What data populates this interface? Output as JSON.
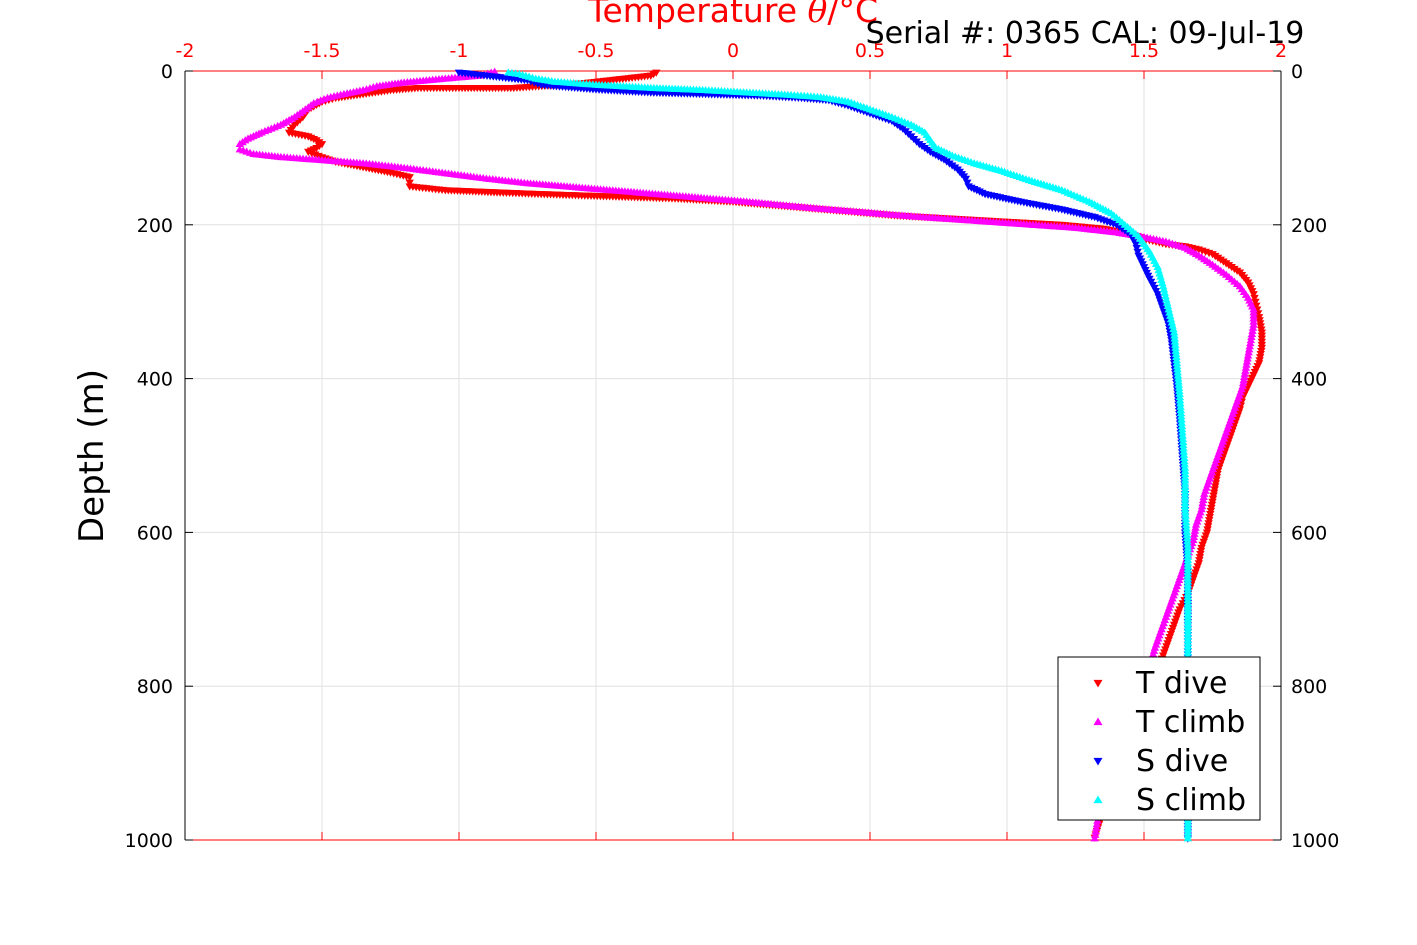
{
  "chart_data": {
    "type": "scatter",
    "title_prefix": "Temperature ",
    "title_symbol": "θ",
    "title_suffix": "/°C",
    "annotation": "Serial #: 0365  CAL: 09-Jul-19",
    "xlabel": "Temperature θ/°C",
    "ylabel": "Depth (m)",
    "xlim": [
      -2,
      2
    ],
    "ylim": [
      0,
      1000
    ],
    "y_reversed": true,
    "x_axis_position": "top",
    "x_ticks": [
      -2,
      -1.5,
      -1,
      -0.5,
      0,
      0.5,
      1,
      1.5,
      2
    ],
    "x_tick_labels": [
      "-2",
      "-1.5",
      "-1",
      "-0.5",
      "0",
      "0.5",
      "1",
      "1.5",
      "2"
    ],
    "y_ticks": [
      0,
      200,
      400,
      600,
      800,
      1000
    ],
    "y_tick_labels": [
      "0",
      "200",
      "400",
      "600",
      "800",
      "1000"
    ],
    "grid": true,
    "legend_position": "bottom-right",
    "colors": {
      "axis_x": "#ff0000",
      "axis_y": "#000000",
      "grid": "#e0e0e0",
      "title": "#ff0000"
    },
    "series": [
      {
        "name": "T dive",
        "color": "#ff0000",
        "marker": "triangle-down",
        "points": [
          [
            -0.28,
            2
          ],
          [
            -0.3,
            6
          ],
          [
            -0.55,
            16
          ],
          [
            -0.8,
            22
          ],
          [
            -1.0,
            22
          ],
          [
            -1.15,
            22
          ],
          [
            -1.25,
            25
          ],
          [
            -1.35,
            30
          ],
          [
            -1.45,
            35
          ],
          [
            -1.5,
            40
          ],
          [
            -1.55,
            50
          ],
          [
            -1.57,
            60
          ],
          [
            -1.6,
            70
          ],
          [
            -1.62,
            80
          ],
          [
            -1.55,
            85
          ],
          [
            -1.52,
            90
          ],
          [
            -1.5,
            95
          ],
          [
            -1.52,
            100
          ],
          [
            -1.55,
            105
          ],
          [
            -1.5,
            112
          ],
          [
            -1.45,
            118
          ],
          [
            -1.35,
            125
          ],
          [
            -1.25,
            132
          ],
          [
            -1.18,
            138
          ],
          [
            -1.18,
            145
          ],
          [
            -1.18,
            150
          ],
          [
            -1.05,
            155
          ],
          [
            -0.85,
            158
          ],
          [
            -0.7,
            160
          ],
          [
            -0.45,
            163
          ],
          [
            -0.2,
            166
          ],
          [
            0.0,
            170
          ],
          [
            0.2,
            176
          ],
          [
            0.4,
            182
          ],
          [
            0.6,
            188
          ],
          [
            0.8,
            192
          ],
          [
            1.0,
            196
          ],
          [
            1.2,
            200
          ],
          [
            1.35,
            205
          ],
          [
            1.45,
            212
          ],
          [
            1.52,
            220
          ],
          [
            1.58,
            225
          ],
          [
            1.65,
            228
          ],
          [
            1.7,
            232
          ],
          [
            1.75,
            238
          ],
          [
            1.8,
            250
          ],
          [
            1.85,
            262
          ],
          [
            1.88,
            275
          ],
          [
            1.9,
            290
          ],
          [
            1.91,
            305
          ],
          [
            1.92,
            320
          ],
          [
            1.93,
            340
          ],
          [
            1.93,
            360
          ],
          [
            1.92,
            380
          ],
          [
            1.9,
            395
          ],
          [
            1.88,
            410
          ],
          [
            1.86,
            425
          ],
          [
            1.85,
            440
          ],
          [
            1.83,
            460
          ],
          [
            1.81,
            480
          ],
          [
            1.79,
            500
          ],
          [
            1.77,
            520
          ],
          [
            1.76,
            540
          ],
          [
            1.75,
            560
          ],
          [
            1.74,
            580
          ],
          [
            1.73,
            600
          ],
          [
            1.71,
            620
          ],
          [
            1.7,
            640
          ],
          [
            1.68,
            660
          ],
          [
            1.66,
            680
          ],
          [
            1.63,
            700
          ],
          [
            1.61,
            720
          ],
          [
            1.59,
            740
          ],
          [
            1.57,
            760
          ],
          [
            1.55,
            780
          ],
          [
            1.52,
            800
          ],
          [
            1.49,
            830
          ],
          [
            1.45,
            860
          ],
          [
            1.42,
            890
          ],
          [
            1.39,
            920
          ],
          [
            1.36,
            950
          ],
          [
            1.34,
            975
          ],
          [
            1.32,
            997
          ]
        ]
      },
      {
        "name": "T climb",
        "color": "#ff00ff",
        "marker": "triangle-up",
        "points": [
          [
            -0.87,
            1
          ],
          [
            -0.92,
            6
          ],
          [
            -1.05,
            10
          ],
          [
            -1.2,
            15
          ],
          [
            -1.3,
            20
          ],
          [
            -1.35,
            25
          ],
          [
            -1.42,
            30
          ],
          [
            -1.48,
            35
          ],
          [
            -1.53,
            42
          ],
          [
            -1.56,
            50
          ],
          [
            -1.6,
            60
          ],
          [
            -1.65,
            70
          ],
          [
            -1.72,
            80
          ],
          [
            -1.77,
            88
          ],
          [
            -1.8,
            95
          ],
          [
            -1.8,
            102
          ],
          [
            -1.75,
            108
          ],
          [
            -1.65,
            112
          ],
          [
            -1.5,
            116
          ],
          [
            -1.35,
            120
          ],
          [
            -1.2,
            126
          ],
          [
            -1.05,
            133
          ],
          [
            -0.9,
            140
          ],
          [
            -0.75,
            146
          ],
          [
            -0.55,
            152
          ],
          [
            -0.35,
            158
          ],
          [
            -0.15,
            164
          ],
          [
            0.05,
            170
          ],
          [
            0.25,
            177
          ],
          [
            0.45,
            183
          ],
          [
            0.65,
            189
          ],
          [
            0.85,
            194
          ],
          [
            1.05,
            199
          ],
          [
            1.25,
            204
          ],
          [
            1.4,
            210
          ],
          [
            1.5,
            216
          ],
          [
            1.58,
            222
          ],
          [
            1.65,
            230
          ],
          [
            1.7,
            240
          ],
          [
            1.75,
            252
          ],
          [
            1.8,
            265
          ],
          [
            1.85,
            280
          ],
          [
            1.88,
            295
          ],
          [
            1.9,
            310
          ],
          [
            1.9,
            330
          ],
          [
            1.89,
            350
          ],
          [
            1.88,
            370
          ],
          [
            1.87,
            390
          ],
          [
            1.86,
            410
          ],
          [
            1.84,
            430
          ],
          [
            1.82,
            450
          ],
          [
            1.8,
            470
          ],
          [
            1.78,
            490
          ],
          [
            1.76,
            510
          ],
          [
            1.74,
            530
          ],
          [
            1.72,
            550
          ],
          [
            1.71,
            570
          ],
          [
            1.69,
            590
          ],
          [
            1.68,
            610
          ],
          [
            1.66,
            630
          ],
          [
            1.64,
            650
          ],
          [
            1.62,
            670
          ],
          [
            1.6,
            690
          ],
          [
            1.58,
            710
          ],
          [
            1.56,
            730
          ],
          [
            1.54,
            750
          ],
          [
            1.52,
            775
          ],
          [
            1.49,
            800
          ],
          [
            1.46,
            830
          ],
          [
            1.43,
            860
          ],
          [
            1.4,
            890
          ],
          [
            1.37,
            920
          ],
          [
            1.35,
            950
          ],
          [
            1.33,
            975
          ],
          [
            1.32,
            998
          ]
        ]
      },
      {
        "name": "S dive",
        "color": "#0000ff",
        "marker": "triangle-down",
        "points": [
          [
            -1.0,
            2
          ],
          [
            -0.75,
            12
          ],
          [
            -0.7,
            18
          ],
          [
            -0.5,
            24
          ],
          [
            -0.3,
            28
          ],
          [
            -0.1,
            30
          ],
          [
            0.1,
            32
          ],
          [
            0.25,
            35
          ],
          [
            0.35,
            38
          ],
          [
            0.42,
            45
          ],
          [
            0.5,
            55
          ],
          [
            0.58,
            65
          ],
          [
            0.62,
            75
          ],
          [
            0.65,
            85
          ],
          [
            0.68,
            95
          ],
          [
            0.72,
            105
          ],
          [
            0.77,
            115
          ],
          [
            0.82,
            128
          ],
          [
            0.85,
            140
          ],
          [
            0.86,
            150
          ],
          [
            0.92,
            160
          ],
          [
            1.05,
            170
          ],
          [
            1.2,
            180
          ],
          [
            1.32,
            190
          ],
          [
            1.4,
            200
          ],
          [
            1.45,
            212
          ],
          [
            1.47,
            225
          ],
          [
            1.48,
            240
          ],
          [
            1.5,
            255
          ],
          [
            1.52,
            270
          ],
          [
            1.55,
            290
          ],
          [
            1.57,
            310
          ],
          [
            1.59,
            330
          ],
          [
            1.6,
            350
          ],
          [
            1.61,
            380
          ],
          [
            1.62,
            410
          ],
          [
            1.63,
            450
          ],
          [
            1.64,
            500
          ],
          [
            1.65,
            550
          ],
          [
            1.65,
            600
          ],
          [
            1.66,
            650
          ],
          [
            1.66,
            700
          ],
          [
            1.66,
            750
          ],
          [
            1.66,
            800
          ],
          [
            1.66,
            850
          ],
          [
            1.66,
            900
          ],
          [
            1.66,
            950
          ],
          [
            1.66,
            998
          ]
        ]
      },
      {
        "name": "S climb",
        "color": "#00ffff",
        "marker": "triangle-up",
        "points": [
          [
            -0.82,
            2
          ],
          [
            -0.78,
            4
          ],
          [
            -0.72,
            10
          ],
          [
            -0.65,
            14
          ],
          [
            -0.5,
            18
          ],
          [
            -0.3,
            22
          ],
          [
            -0.1,
            25
          ],
          [
            0.05,
            28
          ],
          [
            0.2,
            31
          ],
          [
            0.32,
            34
          ],
          [
            0.42,
            40
          ],
          [
            0.5,
            50
          ],
          [
            0.58,
            60
          ],
          [
            0.65,
            70
          ],
          [
            0.7,
            80
          ],
          [
            0.72,
            90
          ],
          [
            0.74,
            100
          ],
          [
            0.8,
            110
          ],
          [
            0.88,
            120
          ],
          [
            0.98,
            130
          ],
          [
            1.08,
            142
          ],
          [
            1.2,
            155
          ],
          [
            1.3,
            170
          ],
          [
            1.38,
            185
          ],
          [
            1.43,
            200
          ],
          [
            1.48,
            215
          ],
          [
            1.52,
            235
          ],
          [
            1.55,
            255
          ],
          [
            1.57,
            280
          ],
          [
            1.59,
            310
          ],
          [
            1.61,
            340
          ],
          [
            1.62,
            380
          ],
          [
            1.63,
            420
          ],
          [
            1.64,
            470
          ],
          [
            1.65,
            520
          ],
          [
            1.65,
            570
          ],
          [
            1.66,
            620
          ],
          [
            1.66,
            680
          ],
          [
            1.66,
            740
          ],
          [
            1.66,
            800
          ],
          [
            1.66,
            860
          ],
          [
            1.66,
            920
          ],
          [
            1.66,
            998
          ]
        ]
      }
    ]
  }
}
